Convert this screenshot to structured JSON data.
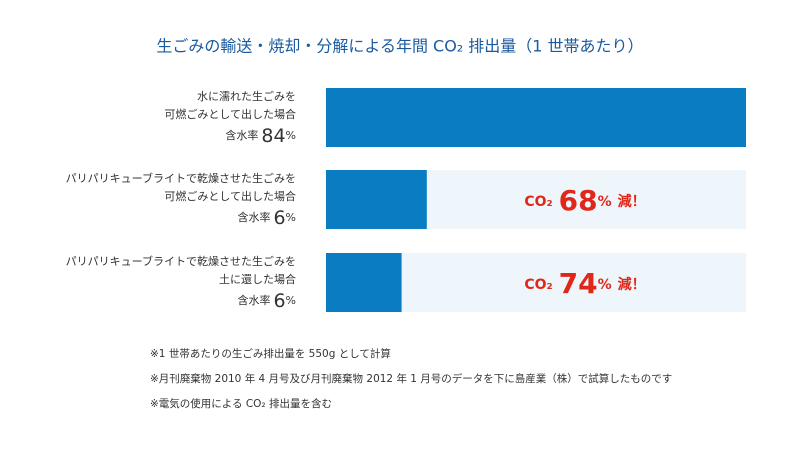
{
  "chart_data": {
    "type": "hbar",
    "title": "生ごみの輸送・焼却・分解による年間 CO₂ 排出量（1 世帯あたり）",
    "categories": [
      [
        "水に濡れた生ごみを",
        "可燃ごみとして出した場合"
      ],
      [
        "パリパリキューブライトで乾燥させた生ごみを",
        "可燃ごみとして出した場合"
      ],
      [
        "パリパリキューブライトで乾燥させた生ごみを",
        "土に還した場合"
      ]
    ],
    "values": [
      100,
      24,
      18
    ],
    "xlim": [
      0,
      100
    ],
    "color": "#0a7cc1",
    "moisture_label": "含水率",
    "moisture": [
      84,
      6,
      6
    ],
    "unit": "%",
    "reduction_prefix": "CO₂",
    "reductions": [
      null,
      68,
      74
    ],
    "reduction_suffix": "減！",
    "notes": [
      "※1 世帯あたりの生ごみ排出量を 550g として計算",
      "※月刊廃棄物 2010 年 4 月号及び月刊廃棄物 2012 年 1 月号のデータを下に島産業（株）で試算したものです",
      "※電気の使用による CO₂ 排出量を含む"
    ]
  }
}
